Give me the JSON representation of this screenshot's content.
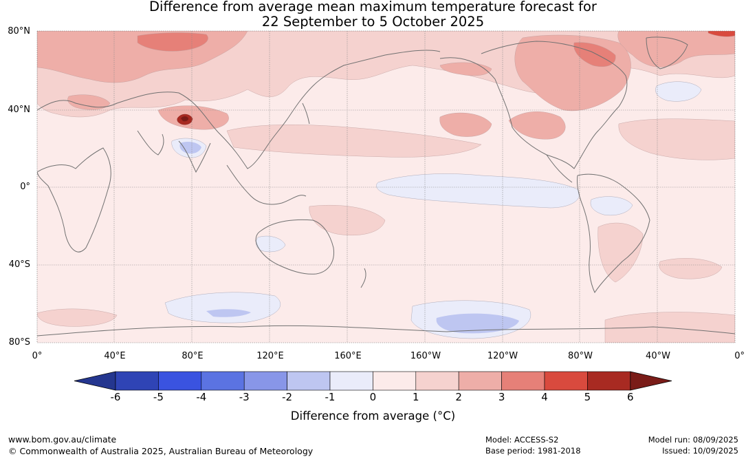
{
  "title": {
    "line1": "Difference from average mean maximum temperature forecast for",
    "line2": "22 September to 5 October 2025"
  },
  "map": {
    "lat_labels": [
      "80°N",
      "40°N",
      "0°",
      "40°S",
      "80°S"
    ],
    "lon_labels": [
      "0°",
      "40°E",
      "80°E",
      "120°E",
      "160°E",
      "160°W",
      "120°W",
      "80°W",
      "40°W",
      "0°"
    ],
    "background_color": "#fcebea",
    "coast_color": "#707070"
  },
  "colorbar": {
    "ticks": [
      "-6",
      "-5",
      "-4",
      "-3",
      "-2",
      "-1",
      "0",
      "1",
      "2",
      "3",
      "4",
      "5",
      "6"
    ],
    "colors": [
      "#24368f",
      "#2f44b5",
      "#3a53e0",
      "#5b73e2",
      "#8896e8",
      "#bec6f1",
      "#eaecfa",
      "#fcebea",
      "#f5d2cf",
      "#eeaea8",
      "#e68078",
      "#d94a3e",
      "#a82a22",
      "#7a1c18"
    ],
    "label": "Difference from average (°C)"
  },
  "footer": {
    "website": "www.bom.gov.au/climate",
    "copyright": "© Commonwealth of Australia 2025, Australian Bureau of Meteorology",
    "model": "Model: ACCESS-S2",
    "base_period": "Base period: 1981-2018",
    "model_run": "Model run: 08/09/2025",
    "issued": "Issued: 10/09/2025"
  }
}
